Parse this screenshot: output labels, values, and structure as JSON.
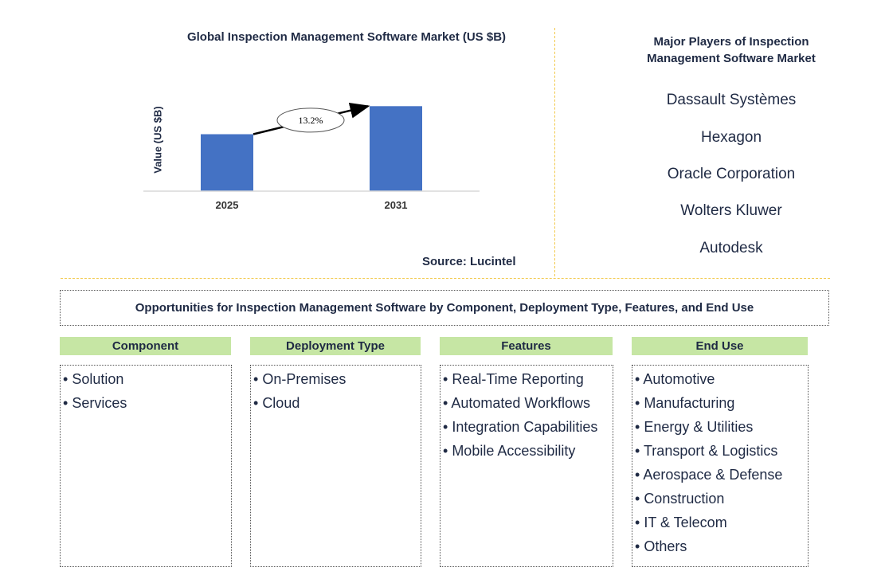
{
  "chart_data": {
    "type": "bar",
    "title": "Global Inspection Management Software Market (US $B)",
    "ylabel": "Value (US $B)",
    "xlabel": "",
    "categories": [
      "2025",
      "2031"
    ],
    "values": [
      0.65,
      0.97
    ],
    "ylim": [
      0,
      1.0
    ],
    "annotation": "13.2%",
    "bar_color": "#4472c4",
    "source": "Source: Lucintel"
  },
  "players": {
    "title": "Major Players of Inspection Management Software Market",
    "items": [
      "Dassault Systèmes",
      "Hexagon",
      "Oracle Corporation",
      "Wolters Kluwer",
      "Autodesk"
    ]
  },
  "opportunities": {
    "title": "Opportunities for Inspection Management Software by Component, Deployment Type, Features, and End Use"
  },
  "categories": [
    {
      "header": "Component",
      "items": [
        "Solution",
        "Services"
      ]
    },
    {
      "header": "Deployment Type",
      "items": [
        "On-Premises",
        "Cloud"
      ]
    },
    {
      "header": "Features",
      "items": [
        "Real-Time Reporting",
        "Automated Workflows",
        "Integration Capabilities",
        "Mobile Accessibility"
      ]
    },
    {
      "header": "End Use",
      "items": [
        "Automotive",
        "Manufacturing",
        "Energy & Utilities",
        "Transport & Logistics",
        "Aerospace & Defense",
        "Construction",
        "IT & Telecom",
        "Others"
      ]
    }
  ],
  "colors": {
    "header_bg": "#c6e6a4",
    "text": "#1f2a44",
    "divider": "#f2c94c"
  }
}
